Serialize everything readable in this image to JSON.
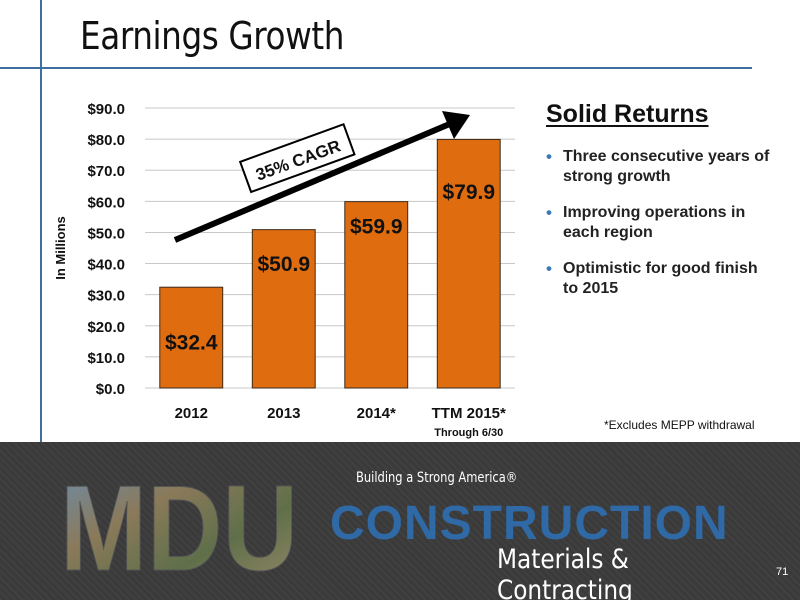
{
  "slide": {
    "title": "Earnings Growth",
    "page_number": "71"
  },
  "sidebar": {
    "heading": "Solid Returns",
    "bullets": [
      "Three consecutive years of strong growth",
      "Improving operations in each region",
      "Optimistic for good finish to 2015"
    ],
    "footnote": "*Excludes MEPP withdrawal"
  },
  "footer": {
    "logo_text": "MDU",
    "tagline": "Building a Strong America®",
    "brand": "CONSTRUCTION",
    "subbrand": "Materials & Contracting"
  },
  "chart_data": {
    "type": "bar",
    "categories": [
      "2012",
      "2013",
      "2014*",
      "TTM 2015*"
    ],
    "category_sublabels": [
      "",
      "",
      "",
      "Through 6/30"
    ],
    "values": [
      32.4,
      50.9,
      59.9,
      79.9
    ],
    "data_labels": [
      "$32.4",
      "$50.9",
      "$59.9",
      "$79.9"
    ],
    "ylabel": "In Millions",
    "ylim": [
      0,
      90
    ],
    "y_ticks": [
      "$0.0",
      "$10.0",
      "$20.0",
      "$30.0",
      "$40.0",
      "$50.0",
      "$60.0",
      "$70.0",
      "$80.0",
      "$90.0"
    ],
    "grid": true,
    "bar_color": "#e06c10",
    "annotation": "35% CAGR"
  }
}
